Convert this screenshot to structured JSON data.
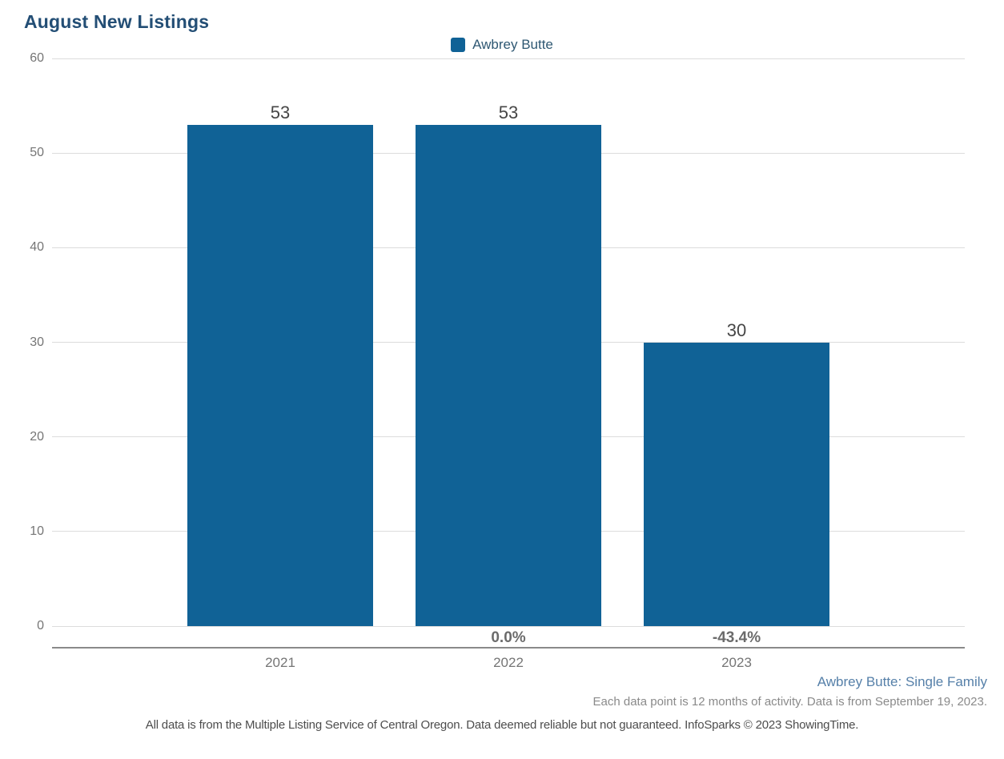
{
  "title": "August New Listings",
  "legend": {
    "items": [
      {
        "label": "Awbrey Butte",
        "color": "#106296"
      }
    ]
  },
  "footer": {
    "series_note": "Awbrey Butte: Single Family",
    "data_note": "Each data point is 12 months of activity. Data is from September 19, 2023.",
    "disclaimer": "All data is from the Multiple Listing Service of Central Oregon. Data deemed reliable but not guaranteed. InfoSparks © 2023 ShowingTime."
  },
  "colors": {
    "bar": "#106296",
    "title_text": "#234e75",
    "legend_text": "#2f5873",
    "series_note_text": "#5680a9",
    "axis_text": "#757575",
    "value_label_text": "#464646",
    "pct_label_text": "#6b6b6b",
    "gridline": "#dcdcdc",
    "axis_line": "#8a8a8a"
  },
  "chart_data": {
    "type": "bar",
    "title": "August New Listings",
    "series_name": "Awbrey Butte",
    "categories": [
      "2021",
      "2022",
      "2023"
    ],
    "values": [
      53,
      53,
      30
    ],
    "value_labels": [
      "53",
      "53",
      "30"
    ],
    "pct_change_labels": [
      "",
      "0.0%",
      "-43.4%"
    ],
    "xlabel": "",
    "ylabel": "",
    "ylim": [
      0,
      60
    ],
    "yticks": [
      0,
      10,
      20,
      30,
      40,
      50,
      60
    ],
    "grid": true,
    "legend_position": "top center"
  }
}
